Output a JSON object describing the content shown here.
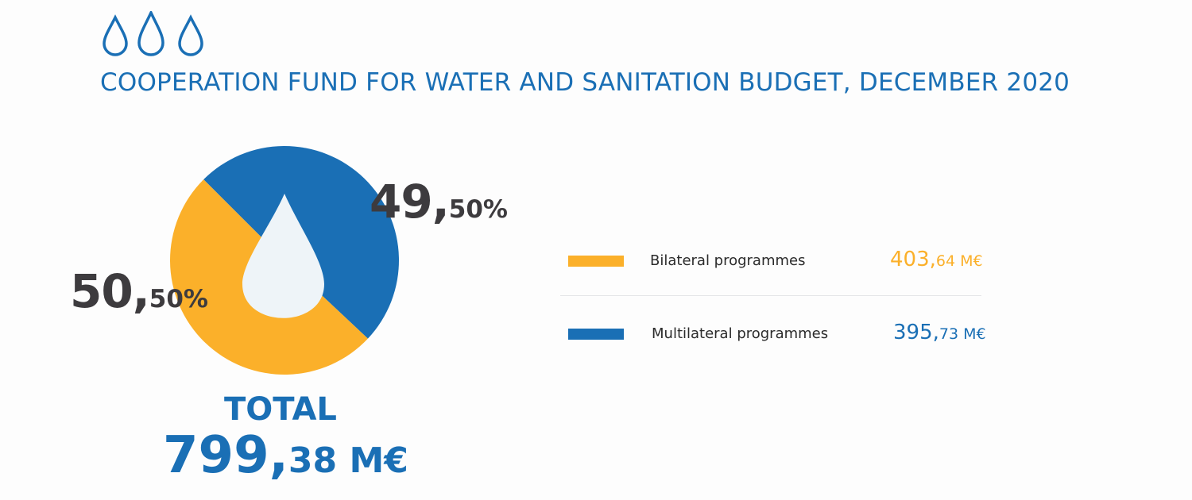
{
  "title": "COOPERATION FUND FOR WATER AND SANITATION BUDGET, DECEMBER 2020",
  "icons": [
    "water-drop-icon",
    "water-drop-icon",
    "water-drop-icon"
  ],
  "colors": {
    "blue": "#1a6fb5",
    "yellow": "#fbb02a",
    "drop": "#eef4f8",
    "text": "#3d3b3e"
  },
  "chart_data": {
    "type": "pie",
    "title": "COOPERATION FUND FOR WATER AND SANITATION BUDGET, DECEMBER 2020",
    "series": [
      {
        "name": "Bilateral programmes",
        "value": 403.64,
        "percent": 50.5,
        "pct_int": "50,",
        "pct_dec": "50%",
        "val_int": "403,",
        "val_dec": "64 M€",
        "color": "#fbb02a"
      },
      {
        "name": "Multilateral programmes",
        "value": 395.73,
        "percent": 49.5,
        "pct_int": "49,",
        "pct_dec": "50%",
        "val_int": "395,",
        "val_dec": "73 M€",
        "color": "#1a6fb5"
      }
    ],
    "unit": "M€",
    "legend_position": "right"
  },
  "total": {
    "label": "TOTAL",
    "int": "799,",
    "dec": "38 M€",
    "value": 799.38
  }
}
